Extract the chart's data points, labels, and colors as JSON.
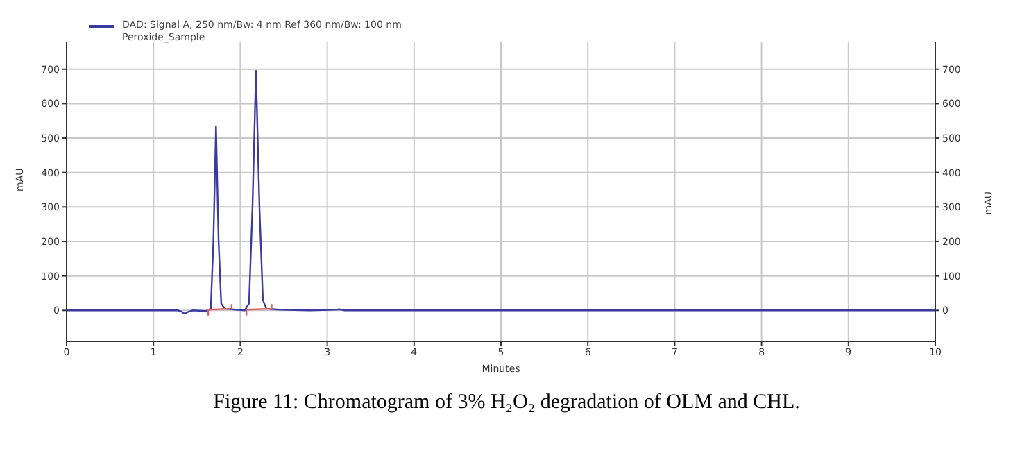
{
  "chart_data": {
    "type": "line",
    "title": "Figure 11: Chromatogram of 3% H₂O₂ degradation of OLM and CHL.",
    "xlabel": "Minutes",
    "ylabel": "mAU",
    "y2label": "mAU",
    "series": [
      {
        "name": "DAD: Signal A, 250 nm/Bw: 4 nm Ref 360 nm/Bw: 100 nm",
        "color": "#3a3aa0",
        "x": [
          0,
          1.28,
          1.32,
          1.36,
          1.4,
          1.45,
          1.6,
          1.66,
          1.69,
          1.72,
          1.75,
          1.78,
          1.82,
          1.95,
          2.05,
          2.1,
          2.14,
          2.18,
          2.22,
          2.26,
          2.3,
          2.45,
          2.8,
          3.1,
          3.15,
          3.2,
          10
        ],
        "values": [
          0,
          0,
          -3,
          -10,
          -4,
          0,
          -2,
          5,
          200,
          535,
          200,
          20,
          5,
          2,
          0,
          20,
          300,
          695,
          300,
          30,
          5,
          2,
          0,
          2,
          3,
          0,
          0
        ]
      },
      {
        "color": "#e06060",
        "x": [
          1.63,
          1.63,
          1.9,
          1.9,
          1.95,
          2.07,
          2.07,
          2.36,
          2.36
        ],
        "values": [
          -15,
          2,
          5,
          18,
          null,
          -15,
          2,
          5,
          18
        ]
      }
    ],
    "annotations": [
      "Peroxide_Sample"
    ],
    "xlim": [
      0,
      10
    ],
    "xticks": [
      0,
      1,
      2,
      3,
      4,
      5,
      6,
      7,
      8,
      9,
      10
    ],
    "ylim": [
      -90,
      780
    ],
    "yticks": [
      0,
      100,
      200,
      300,
      400,
      500,
      600,
      700
    ],
    "y2lim": [
      -90,
      780
    ],
    "y2ticks": [
      0,
      100,
      200,
      300,
      400,
      500,
      600,
      700
    ],
    "grid": true,
    "legend": "top left",
    "marker": "none",
    "line_style": "solid"
  }
}
